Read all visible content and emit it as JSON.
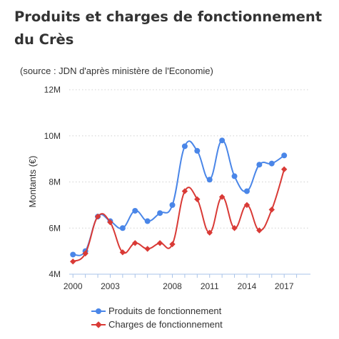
{
  "header": {
    "title": "Produits et charges de fonctionnement du Crès",
    "subtitle": "(source : JDN d'après ministère de l'Economie)"
  },
  "chart_data": {
    "type": "line",
    "title": "Produits et charges de fonctionnement du Crès",
    "subtitle": "(source : JDN d'après ministère de l'Economie)",
    "xlabel": "",
    "ylabel": "Montants (€)",
    "x": [
      2000,
      2001,
      2002,
      2003,
      2004,
      2005,
      2006,
      2007,
      2008,
      2009,
      2010,
      2011,
      2012,
      2013,
      2014,
      2015,
      2016,
      2017,
      2018
    ],
    "x_ticks": [
      "2000",
      "2003",
      "2008",
      "2011",
      "2014",
      "2017"
    ],
    "y_ticks": [
      "4M",
      "6M",
      "8M",
      "10M",
      "12M"
    ],
    "ylim": [
      4,
      12
    ],
    "y_unit": "M",
    "grid": "horizontal dotted",
    "legend_position": "bottom",
    "series": [
      {
        "name": "Produits de fonctionnement",
        "color": "#4a86e8",
        "marker": "circle",
        "values": [
          4.85,
          5.0,
          6.5,
          6.3,
          6.0,
          6.75,
          6.3,
          6.65,
          7.0,
          9.55,
          9.35,
          8.1,
          9.8,
          8.25,
          7.6,
          8.75,
          8.8,
          9.15,
          null
        ]
      },
      {
        "name": "Charges de fonctionnement",
        "color": "#d93a36",
        "marker": "diamond",
        "values": [
          4.55,
          4.9,
          6.5,
          6.25,
          4.95,
          5.35,
          5.1,
          5.35,
          5.3,
          7.6,
          7.25,
          5.8,
          7.35,
          6.0,
          7.0,
          5.9,
          6.8,
          8.55,
          null
        ]
      }
    ]
  }
}
